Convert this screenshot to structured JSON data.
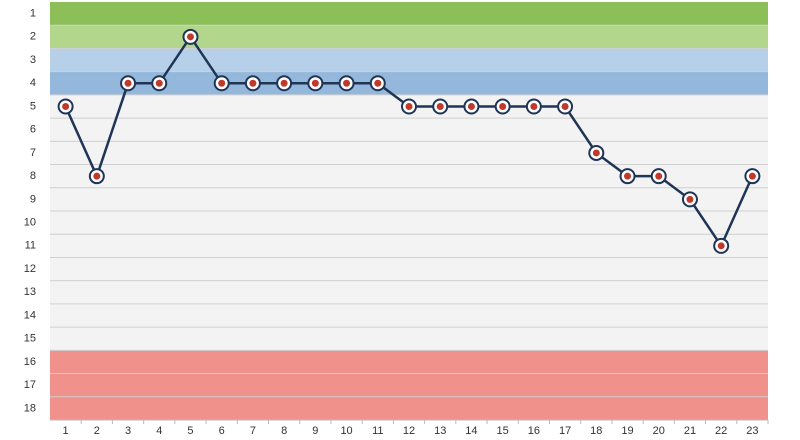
{
  "chart_data": {
    "type": "line",
    "x": [
      1,
      2,
      3,
      4,
      5,
      6,
      7,
      8,
      9,
      10,
      11,
      12,
      13,
      14,
      15,
      16,
      17,
      18,
      19,
      20,
      21,
      22,
      23
    ],
    "xlim": [
      0.5,
      23.5
    ],
    "series": [
      {
        "color": "#1f3556",
        "values": [
          5,
          8,
          4,
          4,
          2,
          4,
          4,
          4,
          4,
          4,
          4,
          5,
          5,
          5,
          5,
          5,
          5,
          7,
          8,
          8,
          9,
          11,
          8
        ]
      }
    ],
    "ylim": [
      0.5,
      18.5
    ],
    "y_inverted": true,
    "yticks": [
      1,
      2,
      3,
      4,
      5,
      6,
      7,
      8,
      9,
      10,
      11,
      12,
      13,
      14,
      15,
      16,
      17,
      18
    ],
    "zones": [
      {
        "from": 1,
        "to": 1,
        "color": "#8cbf57"
      },
      {
        "from": 2,
        "to": 2,
        "color": "#b2d68b"
      },
      {
        "from": 3,
        "to": 3,
        "color": "#b7d0e9"
      },
      {
        "from": 4,
        "to": 4,
        "color": "#94b7dc"
      },
      {
        "from": 16,
        "to": 18,
        "color": "#f1918c"
      }
    ],
    "grid": true
  }
}
